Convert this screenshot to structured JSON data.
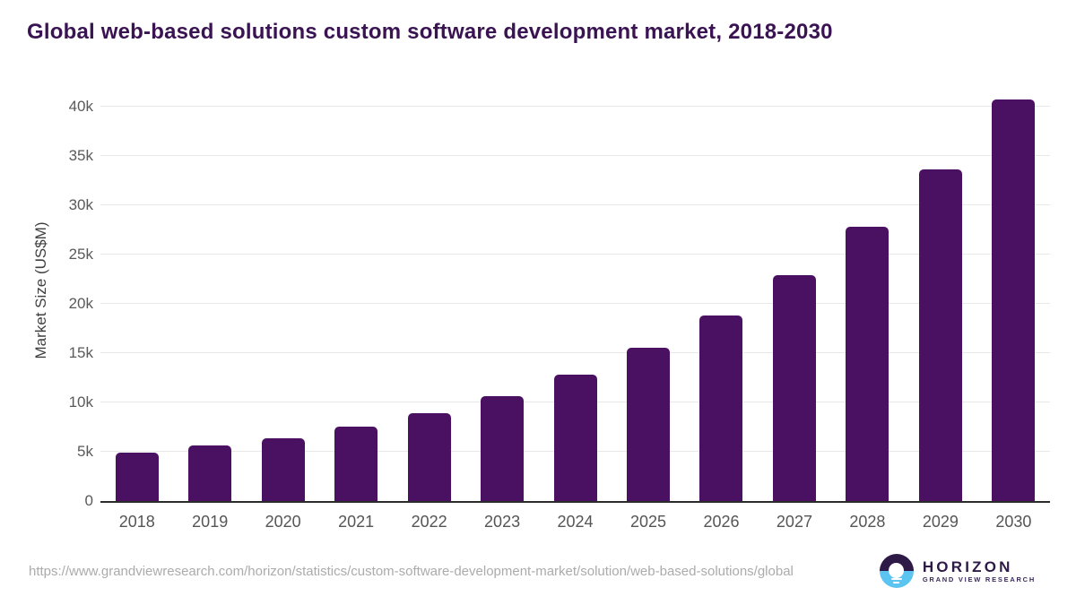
{
  "title": "Global web-based solutions custom software development market, 2018-2030",
  "footer": {
    "source_url": "https://www.grandviewresearch.com/horizon/statistics/custom-software-development-market/solution/web-based-solutions/global",
    "logo_name": "HORIZON",
    "logo_subtitle": "GRAND VIEW RESEARCH"
  },
  "colors": {
    "bar": "#4a1061",
    "title_text": "#3a1352",
    "gridline": "#e8e8e8",
    "axis_line": "#2b2b2b",
    "tick_label": "#5a5a5a",
    "url_text": "#ababab",
    "logo_purple": "#2e1a47",
    "logo_blue": "#5bc4f0"
  },
  "chart_data": {
    "type": "bar",
    "title": "Global web-based solutions custom software development market, 2018-2030",
    "categories": [
      "2018",
      "2019",
      "2020",
      "2021",
      "2022",
      "2023",
      "2024",
      "2025",
      "2026",
      "2027",
      "2028",
      "2029",
      "2030"
    ],
    "values": [
      4900,
      5600,
      6400,
      7500,
      8900,
      10600,
      12800,
      15500,
      18800,
      22900,
      27800,
      33600,
      40700
    ],
    "unit": "US$M",
    "xlabel": "",
    "ylabel": "Market Size (US$M)",
    "ylim": [
      0,
      42600
    ],
    "yticks": [
      0,
      5000,
      10000,
      15000,
      20000,
      25000,
      30000,
      35000,
      40000
    ],
    "ytick_labels": [
      "0",
      "5k",
      "10k",
      "15k",
      "20k",
      "25k",
      "30k",
      "35k",
      "40k"
    ],
    "grid": "horizontal-only",
    "legend": "none",
    "bar_color": "#4a1061"
  }
}
